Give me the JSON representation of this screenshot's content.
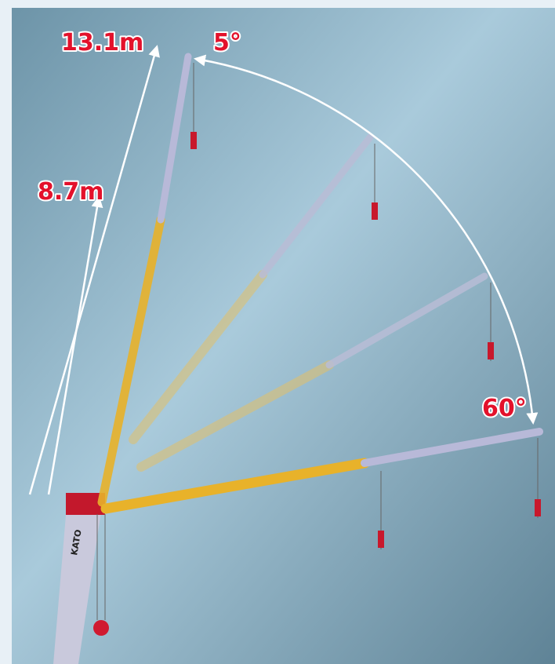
{
  "annotations": [
    {
      "text": "13.1m"
    },
    {
      "text": "5°"
    },
    {
      "text": "8.7m"
    },
    {
      "text": "60°"
    }
  ],
  "brand": "KATO"
}
